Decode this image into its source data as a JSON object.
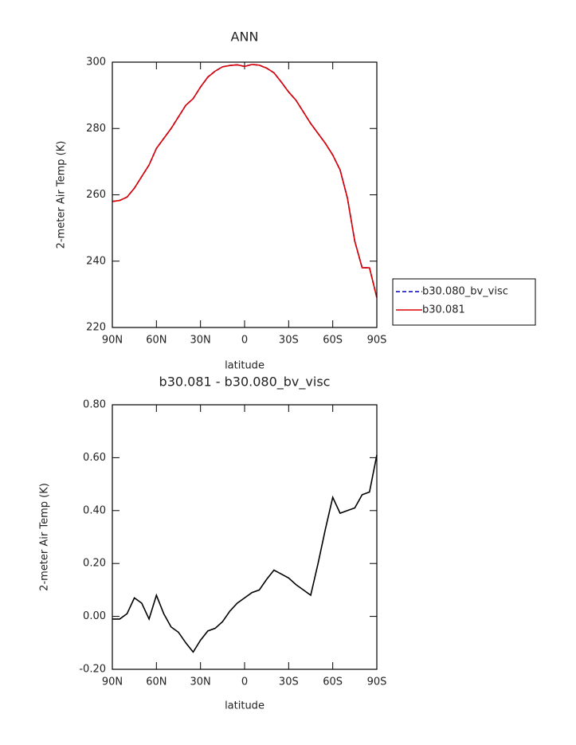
{
  "chart_data": [
    {
      "type": "line",
      "title": "ANN",
      "xlabel": "latitude",
      "ylabel": "2-meter Air Temp (K)",
      "x": [
        90,
        85,
        80,
        75,
        70,
        65,
        60,
        55,
        50,
        45,
        40,
        35,
        30,
        25,
        20,
        15,
        10,
        5,
        0,
        -5,
        -10,
        -15,
        -20,
        -25,
        -30,
        -35,
        -40,
        -45,
        -50,
        -55,
        -60,
        -65,
        -70,
        -75,
        -80,
        -85,
        -90
      ],
      "xlim": [
        90,
        -90
      ],
      "xticks": [
        {
          "value": 90,
          "label": "90N"
        },
        {
          "value": 60,
          "label": "60N"
        },
        {
          "value": 30,
          "label": "30N"
        },
        0,
        {
          "value": -30,
          "label": "30S"
        },
        {
          "value": -60,
          "label": "60S"
        },
        {
          "value": -90,
          "label": "90S"
        }
      ],
      "ylim": [
        220,
        300
      ],
      "yticks": [
        220,
        240,
        260,
        280,
        300
      ],
      "legend": "right",
      "series": [
        {
          "name": "b30.080_bv_visc",
          "color": "#0000cc",
          "dash": "dashed",
          "values": [
            258,
            258.3,
            259.3,
            262,
            265.5,
            269,
            274,
            277,
            280,
            283.5,
            287,
            289,
            292.5,
            295.5,
            297.3,
            298.6,
            299,
            299.2,
            298.7,
            299.3,
            299.1,
            298.2,
            296.8,
            294,
            291,
            288.5,
            285,
            281.5,
            278.5,
            275.5,
            272,
            267.5,
            259,
            246,
            238,
            238,
            229
          ]
        },
        {
          "name": "b30.081",
          "color": "#dd0000",
          "dash": "solid",
          "values": [
            258,
            258.3,
            259.3,
            262,
            265.5,
            269,
            274,
            277,
            280,
            283.5,
            287,
            289,
            292.5,
            295.5,
            297.3,
            298.6,
            299,
            299.2,
            298.7,
            299.3,
            299.1,
            298.2,
            296.8,
            294,
            291,
            288.5,
            285,
            281.5,
            278.5,
            275.5,
            272,
            267.5,
            259,
            246,
            238,
            238,
            229
          ]
        }
      ]
    },
    {
      "type": "line",
      "title": "b30.081 - b30.080_bv_visc",
      "xlabel": "latitude",
      "ylabel": "2-meter Air Temp (K)",
      "x": [
        90,
        85,
        80,
        75,
        70,
        65,
        60,
        55,
        50,
        45,
        40,
        35,
        30,
        25,
        20,
        15,
        10,
        5,
        0,
        -5,
        -10,
        -15,
        -20,
        -25,
        -30,
        -35,
        -40,
        -45,
        -50,
        -55,
        -60,
        -65,
        -70,
        -75,
        -80,
        -85,
        -90
      ],
      "xlim": [
        90,
        -90
      ],
      "xticks": [
        {
          "value": 90,
          "label": "90N"
        },
        {
          "value": 60,
          "label": "60N"
        },
        {
          "value": 30,
          "label": "30N"
        },
        0,
        {
          "value": -30,
          "label": "30S"
        },
        {
          "value": -60,
          "label": "60S"
        },
        {
          "value": -90,
          "label": "90S"
        }
      ],
      "ylim": [
        -0.2,
        0.8
      ],
      "yticks": [
        {
          "value": -0.2,
          "label": "-0.20"
        },
        {
          "value": 0,
          "label": "0.00"
        },
        {
          "value": 0.2,
          "label": "0.20"
        },
        {
          "value": 0.4,
          "label": "0.40"
        },
        {
          "value": 0.6,
          "label": "0.60"
        },
        {
          "value": 0.8,
          "label": "0.80"
        }
      ],
      "series": [
        {
          "color": "#000000",
          "dash": "solid",
          "values": [
            -0.01,
            -0.01,
            0.01,
            0.07,
            0.05,
            -0.01,
            0.08,
            0.01,
            -0.04,
            -0.06,
            -0.1,
            -0.135,
            -0.09,
            -0.055,
            -0.045,
            -0.02,
            0.02,
            0.05,
            0.07,
            0.09,
            0.1,
            0.14,
            0.175,
            0.16,
            0.145,
            0.12,
            0.1,
            0.08,
            0.2,
            0.33,
            0.45,
            0.39,
            0.4,
            0.41,
            0.46,
            0.47,
            0.61
          ]
        }
      ]
    }
  ]
}
